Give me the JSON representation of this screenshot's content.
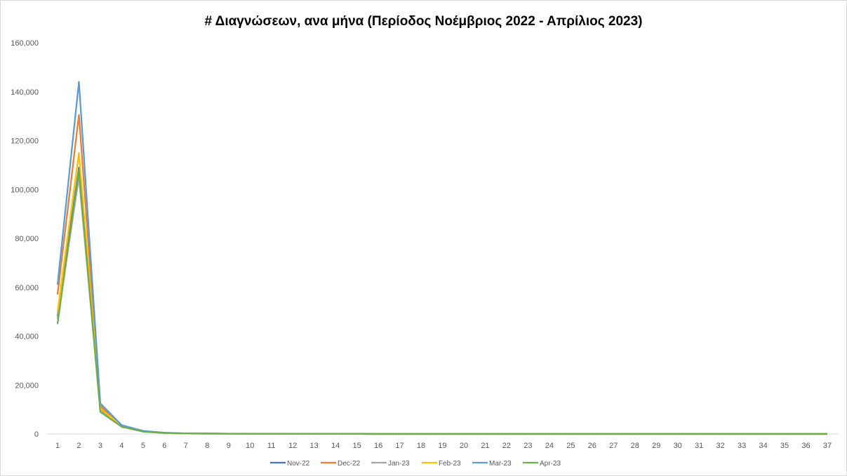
{
  "chart_data": {
    "type": "line",
    "title": "# Διαγνώσεων, ανα μήνα (Περίοδος Νοέμβριος 2022 - Απρίλιος 2023)",
    "xlabel": "",
    "ylabel": "",
    "x": [
      1,
      2,
      3,
      4,
      5,
      6,
      7,
      8,
      9,
      10,
      11,
      12,
      13,
      14,
      15,
      16,
      17,
      18,
      19,
      20,
      21,
      22,
      23,
      24,
      25,
      26,
      27,
      28,
      29,
      30,
      31,
      32,
      33,
      34,
      35,
      36,
      37
    ],
    "ylim": [
      0,
      160000
    ],
    "yticks": [
      0,
      20000,
      40000,
      60000,
      80000,
      100000,
      120000,
      140000,
      160000
    ],
    "ytick_labels": [
      "0",
      "20,000",
      "40,000",
      "60,000",
      "80,000",
      "100,000",
      "120,000",
      "140,000",
      "160,000"
    ],
    "grid": false,
    "legend_position": "bottom",
    "series": [
      {
        "name": "Nov-22",
        "color": "#4472c4",
        "values": [
          48000,
          109000,
          10500,
          3200,
          1000,
          400,
          200,
          150,
          100,
          80,
          50,
          40,
          30,
          20,
          20,
          10,
          10,
          10,
          10,
          10,
          10,
          10,
          10,
          10,
          10,
          10,
          10,
          10,
          10,
          10,
          10,
          10,
          10,
          10,
          10,
          10,
          10
        ]
      },
      {
        "name": "Dec-22",
        "color": "#ed7d31",
        "values": [
          57000,
          130500,
          11500,
          3400,
          1100,
          450,
          220,
          160,
          110,
          85,
          55,
          45,
          30,
          20,
          20,
          10,
          10,
          10,
          10,
          10,
          10,
          10,
          10,
          10,
          10,
          10,
          10,
          10,
          10,
          10,
          10,
          10,
          10,
          10,
          10,
          10,
          10
        ]
      },
      {
        "name": "Jan-23",
        "color": "#a5a5a5",
        "values": [
          47000,
          105000,
          9800,
          3000,
          950,
          380,
          190,
          140,
          95,
          75,
          50,
          40,
          30,
          20,
          20,
          10,
          10,
          10,
          10,
          10,
          10,
          10,
          10,
          10,
          10,
          10,
          10,
          10,
          10,
          10,
          10,
          10,
          10,
          10,
          10,
          10,
          10
        ]
      },
      {
        "name": "Feb-23",
        "color": "#ffc000",
        "values": [
          50000,
          115000,
          10500,
          3200,
          1050,
          420,
          200,
          150,
          100,
          80,
          50,
          40,
          30,
          20,
          20,
          10,
          10,
          10,
          10,
          10,
          10,
          10,
          10,
          10,
          10,
          10,
          10,
          10,
          10,
          10,
          10,
          10,
          10,
          10,
          10,
          10,
          10
        ]
      },
      {
        "name": "Mar-23",
        "color": "#5b9bd5",
        "values": [
          61000,
          144000,
          12500,
          3600,
          1250,
          500,
          240,
          170,
          120,
          90,
          60,
          45,
          35,
          25,
          20,
          10,
          10,
          10,
          10,
          10,
          10,
          10,
          10,
          10,
          10,
          10,
          10,
          10,
          10,
          10,
          10,
          10,
          10,
          10,
          10,
          10,
          10
        ]
      },
      {
        "name": "Apr-23",
        "color": "#70ad47",
        "values": [
          45000,
          108000,
          9000,
          2900,
          950,
          380,
          190,
          140,
          95,
          75,
          50,
          40,
          30,
          20,
          20,
          10,
          10,
          10,
          10,
          10,
          10,
          10,
          10,
          10,
          10,
          10,
          10,
          10,
          10,
          10,
          10,
          10,
          10,
          10,
          10,
          10,
          10
        ]
      }
    ]
  }
}
